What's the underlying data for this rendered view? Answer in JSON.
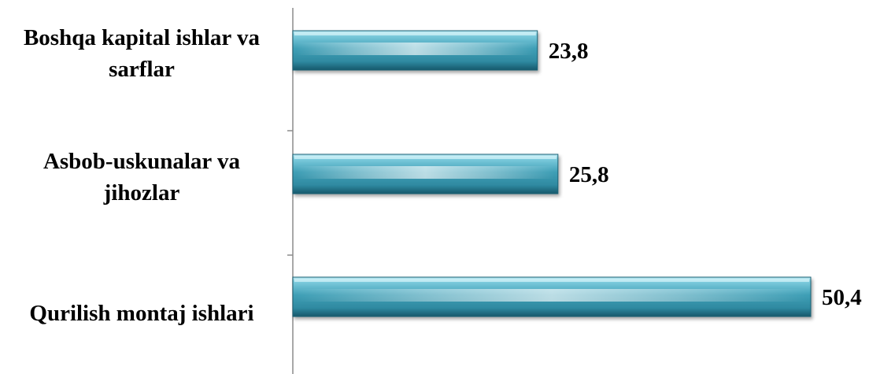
{
  "chart_data": {
    "type": "bar",
    "orientation": "horizontal",
    "categories": [
      [
        "Boshqa kapital ishlar va",
        "sarflar"
      ],
      [
        "Asbob-uskunalar va",
        "jihozlar"
      ],
      [
        "Qurilish montaj ishlari"
      ]
    ],
    "values": [
      23.8,
      25.8,
      50.4
    ],
    "value_labels": [
      "23,8",
      "25,8",
      "50,4"
    ],
    "xlim": [
      0,
      52
    ],
    "grid": false,
    "legend": "none",
    "bar_color": "#3f9fb6"
  }
}
